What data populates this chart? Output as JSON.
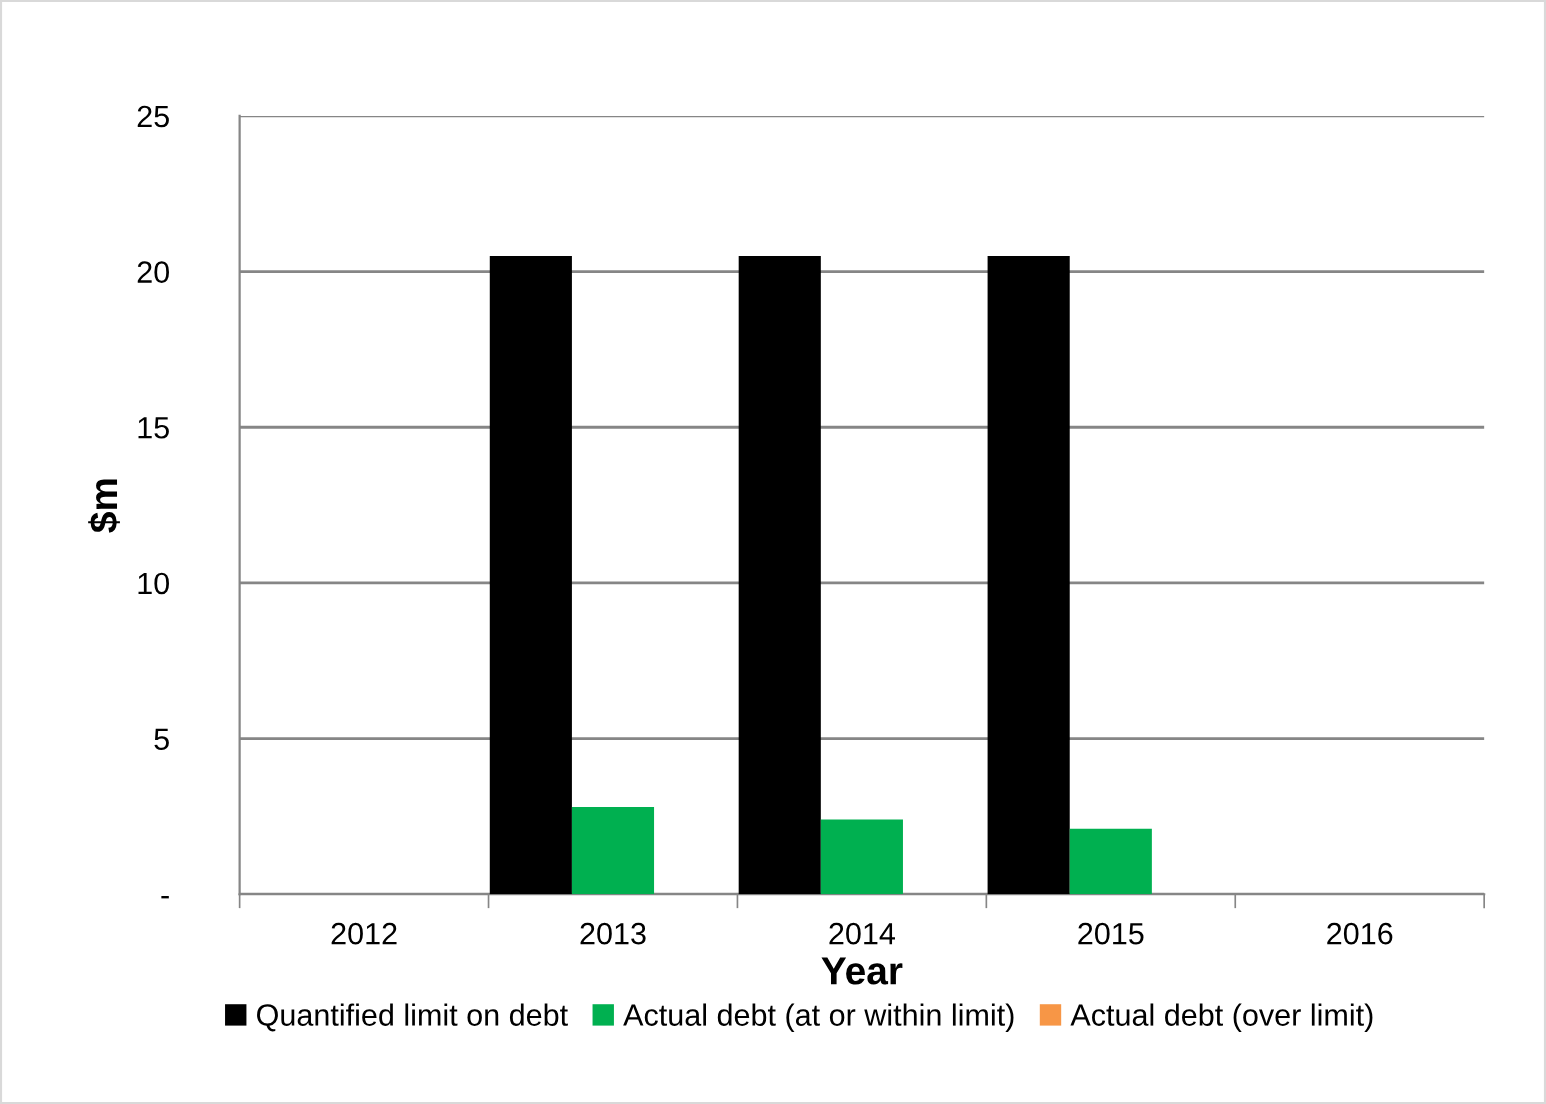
{
  "chart_data": {
    "type": "bar",
    "xlabel": "Year",
    "ylabel": "$m",
    "categories": [
      "2012",
      "2013",
      "2014",
      "2015",
      "2016"
    ],
    "series": [
      {
        "name": "Quantified limit on debt",
        "color": "#000000",
        "values": [
          null,
          20.5,
          20.5,
          20.5,
          null
        ]
      },
      {
        "name": "Actual debt (at or within limit)",
        "color": "#00b050",
        "values": [
          null,
          2.8,
          2.4,
          2.1,
          null
        ]
      },
      {
        "name": "Actual debt (over limit)",
        "color": "#f79646",
        "values": [
          null,
          null,
          null,
          null,
          null
        ]
      }
    ],
    "ylim": [
      0,
      25
    ],
    "yticks": [
      {
        "value": 0,
        "label": "-"
      },
      5,
      10,
      15,
      20,
      25
    ],
    "grid": "y",
    "legend": "bottom"
  }
}
